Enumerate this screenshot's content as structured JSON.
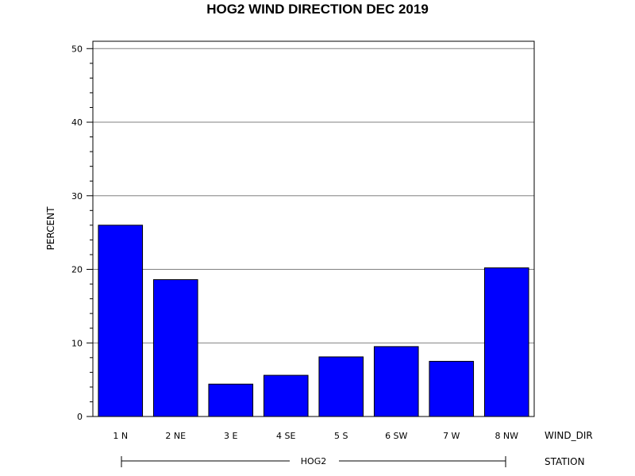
{
  "chart_data": {
    "type": "bar",
    "title": "HOG2 WIND DIRECTION DEC 2019",
    "ylabel": "PERCENT",
    "xlabel": "WIND_DIR",
    "group_axis_label": "STATION",
    "group_label": "HOG2",
    "categories": [
      "1 N",
      "2 NE",
      "3 E",
      "4 SE",
      "5 S",
      "6 SW",
      "7 W",
      "8 NW"
    ],
    "values": [
      26.0,
      18.6,
      4.4,
      5.6,
      8.1,
      9.5,
      7.5,
      20.2
    ],
    "ylim": [
      0,
      51
    ],
    "yticks": [
      "0",
      "10",
      "20",
      "30",
      "40",
      "50"
    ],
    "grid": true,
    "bar_color": "#0000FF"
  }
}
